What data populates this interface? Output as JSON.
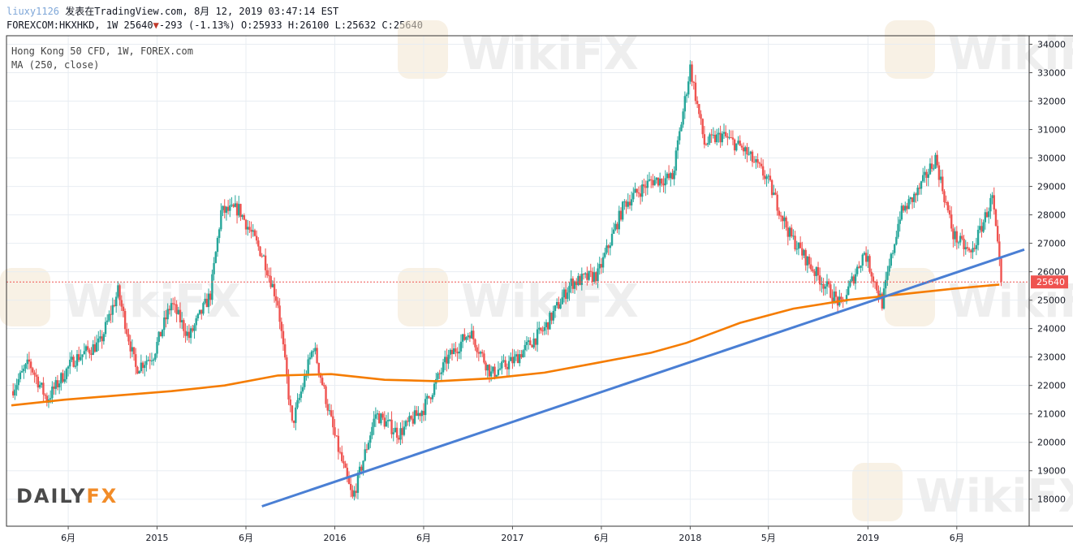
{
  "header": {
    "username": "liuxy1126",
    "published": "发表在TradingView.com, 8月 12, 2019 03:47:14 EST",
    "symbol": "FOREXCOM:HKXHKD, 1W 25640",
    "change": "-293 (-1.13%)",
    "ohlc": "O:25933 H:26100 L:25632 C:25640"
  },
  "legend": {
    "title": "Hong Kong 50 CFD, 1W, FOREX.com",
    "indicator": "MA (250, close)"
  },
  "branding": {
    "logo": "DAILYFX",
    "watermark": "WikiFX"
  },
  "colors": {
    "up": "#26a69a",
    "down": "#ef5350",
    "ma": "#f57c00",
    "trendline": "#4a7fd4",
    "price_line": "#ef5350",
    "grid": "#e8edf2"
  },
  "chart_data": {
    "type": "candlestick",
    "y_axis": {
      "ticks": [
        18000,
        19000,
        20000,
        21000,
        22000,
        23000,
        24000,
        25000,
        26000,
        27000,
        28000,
        29000,
        30000,
        31000,
        32000,
        33000,
        34000
      ],
      "labels": [
        "18000",
        "19000",
        "20000",
        "21000",
        "22000",
        "23000",
        "24000",
        "25000",
        "26000",
        "27000",
        "28000",
        "29000",
        "30000",
        "31000",
        "32000",
        "33000",
        "34000"
      ],
      "range": [
        17050,
        34300
      ]
    },
    "x_axis": {
      "labels": [
        "6月",
        "2015",
        "6月",
        "2016",
        "6月",
        "2017",
        "6月",
        "2018",
        "5月",
        "2019",
        "6月"
      ],
      "bar_index": [
        32,
        82,
        132,
        182,
        232,
        282,
        332,
        382,
        426,
        482,
        532
      ],
      "bar_count": 571
    },
    "last_price": {
      "value": 25640,
      "label": "25640"
    },
    "trendline": {
      "from": {
        "bar": 141,
        "value": 17750
      },
      "to": {
        "bar": 570,
        "value": 26780
      }
    },
    "ma_250": [
      [
        0,
        21300
      ],
      [
        30,
        21500
      ],
      [
        60,
        21650
      ],
      [
        90,
        21800
      ],
      [
        120,
        22000
      ],
      [
        150,
        22350
      ],
      [
        180,
        22400
      ],
      [
        210,
        22200
      ],
      [
        240,
        22150
      ],
      [
        270,
        22250
      ],
      [
        300,
        22450
      ],
      [
        330,
        22800
      ],
      [
        360,
        23150
      ],
      [
        380,
        23500
      ],
      [
        410,
        24200
      ],
      [
        440,
        24700
      ],
      [
        470,
        25000
      ],
      [
        500,
        25200
      ],
      [
        530,
        25400
      ],
      [
        556,
        25550
      ]
    ],
    "price_path": [
      [
        0,
        21800
      ],
      [
        10,
        22800
      ],
      [
        20,
        21500
      ],
      [
        35,
        22900
      ],
      [
        50,
        23500
      ],
      [
        60,
        25300
      ],
      [
        70,
        22600
      ],
      [
        80,
        23100
      ],
      [
        90,
        24900
      ],
      [
        100,
        23700
      ],
      [
        112,
        25200
      ],
      [
        118,
        28100
      ],
      [
        128,
        28200
      ],
      [
        142,
        26500
      ],
      [
        150,
        24900
      ],
      [
        158,
        20600
      ],
      [
        170,
        23400
      ],
      [
        182,
        20200
      ],
      [
        192,
        18000
      ],
      [
        205,
        21000
      ],
      [
        218,
        20300
      ],
      [
        232,
        21200
      ],
      [
        245,
        22900
      ],
      [
        258,
        23900
      ],
      [
        270,
        22400
      ],
      [
        283,
        22900
      ],
      [
        300,
        24000
      ],
      [
        315,
        25600
      ],
      [
        330,
        25900
      ],
      [
        345,
        28400
      ],
      [
        360,
        29200
      ],
      [
        372,
        29300
      ],
      [
        382,
        33200
      ],
      [
        390,
        30500
      ],
      [
        400,
        30800
      ],
      [
        412,
        30300
      ],
      [
        425,
        29300
      ],
      [
        438,
        27300
      ],
      [
        452,
        26000
      ],
      [
        467,
        24800
      ],
      [
        480,
        26700
      ],
      [
        490,
        24900
      ],
      [
        500,
        28000
      ],
      [
        510,
        28800
      ],
      [
        520,
        30000
      ],
      [
        530,
        27300
      ],
      [
        540,
        26600
      ],
      [
        552,
        28600
      ],
      [
        557,
        25640
      ]
    ]
  }
}
